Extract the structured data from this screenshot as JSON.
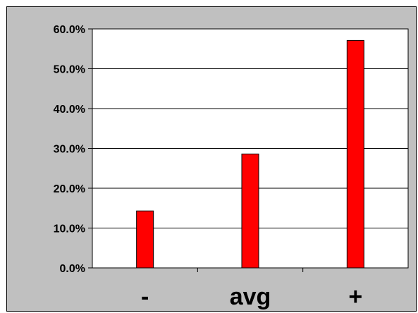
{
  "chart_data": {
    "type": "bar",
    "categories": [
      "-",
      "avg",
      "+"
    ],
    "values": [
      14.3,
      28.6,
      57.1
    ],
    "ylim": [
      0,
      60
    ],
    "yticks": [
      "0.0%",
      "10.0%",
      "20.0%",
      "30.0%",
      "40.0%",
      "50.0%",
      "60.0%"
    ],
    "grid": true,
    "legend": "none",
    "colors": {
      "bar": "#ff0000",
      "bar_outline": "#000000",
      "plot_background": "#ffffff",
      "chart_background": "#c0c0c0",
      "gridline": "#000000"
    }
  }
}
